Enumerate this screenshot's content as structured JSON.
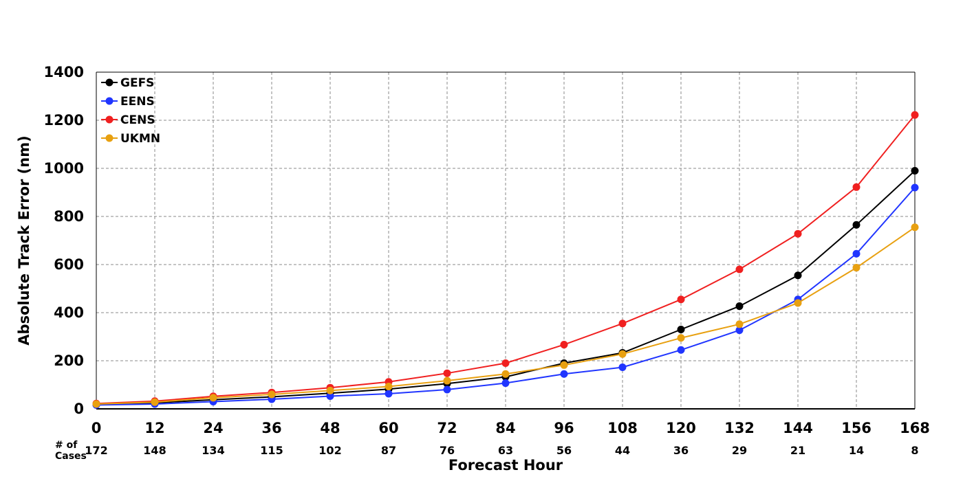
{
  "chart_data": {
    "type": "line",
    "title": "",
    "xlabel": "Forecast Hour",
    "ylabel": "Absolute Track Error (nm)",
    "x": [
      0,
      12,
      24,
      36,
      48,
      60,
      72,
      84,
      96,
      108,
      120,
      132,
      144,
      156,
      168
    ],
    "xlim": [
      0,
      168
    ],
    "ylim": [
      0,
      1400
    ],
    "yticks": [
      0,
      200,
      400,
      600,
      800,
      1000,
      1200,
      1400
    ],
    "grid": true,
    "legend_position": "top-left",
    "cases_label_line1": "# of",
    "cases_label_line2": "Cases",
    "cases": [
      172,
      148,
      134,
      115,
      102,
      87,
      76,
      63,
      56,
      44,
      36,
      29,
      21,
      14,
      8
    ],
    "series": [
      {
        "name": "GEFS",
        "color": "#000000",
        "values": [
          18,
          25,
          38,
          50,
          65,
          82,
          105,
          133,
          190,
          233,
          330,
          427,
          555,
          765,
          990
        ]
      },
      {
        "name": "EENS",
        "color": "#2035ff",
        "values": [
          16,
          20,
          30,
          40,
          53,
          63,
          80,
          107,
          145,
          173,
          245,
          327,
          455,
          645,
          920
        ]
      },
      {
        "name": "CENS",
        "color": "#f02020",
        "values": [
          22,
          32,
          52,
          68,
          88,
          112,
          148,
          190,
          267,
          355,
          455,
          580,
          728,
          922,
          1222
        ]
      },
      {
        "name": "UKMN",
        "color": "#e8a010",
        "values": [
          20,
          28,
          46,
          60,
          76,
          93,
          117,
          145,
          182,
          228,
          295,
          352,
          440,
          587,
          755
        ]
      }
    ]
  }
}
